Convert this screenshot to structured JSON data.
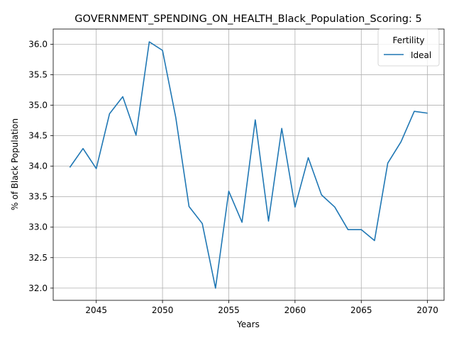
{
  "chart_data": {
    "type": "line",
    "title": "GOVERNMENT_SPENDING_ON_HEALTH_Black_Population_Scoring: 5",
    "xlabel": "Years",
    "ylabel": "% of Black Population",
    "xlim": [
      2041.75,
      2071.25
    ],
    "ylim": [
      31.8,
      36.25
    ],
    "xticks": [
      2045,
      2050,
      2055,
      2060,
      2065,
      2070
    ],
    "yticks": [
      32.0,
      32.5,
      33.0,
      33.5,
      34.0,
      34.5,
      35.0,
      35.5,
      36.0
    ],
    "xtick_labels": [
      "2045",
      "2050",
      "2055",
      "2060",
      "2065",
      "2070"
    ],
    "ytick_labels": [
      "32.0",
      "32.5",
      "33.0",
      "33.5",
      "34.0",
      "34.5",
      "35.0",
      "35.5",
      "36.0"
    ],
    "grid": true,
    "legend": {
      "title": "Fertility",
      "placement": "upper right"
    },
    "series": [
      {
        "name": "Ideal",
        "color": "#1f77b4",
        "x": [
          2043,
          2044,
          2045,
          2046,
          2047,
          2048,
          2049,
          2050,
          2051,
          2052,
          2053,
          2054,
          2055,
          2056,
          2057,
          2058,
          2059,
          2060,
          2061,
          2062,
          2063,
          2064,
          2065,
          2066,
          2067,
          2068,
          2069,
          2070
        ],
        "values": [
          33.98,
          34.29,
          33.96,
          34.86,
          35.14,
          34.51,
          36.04,
          35.9,
          34.8,
          33.34,
          33.06,
          32.0,
          33.59,
          33.08,
          34.76,
          33.1,
          34.62,
          33.33,
          34.14,
          33.53,
          33.33,
          32.96,
          32.96,
          32.78,
          34.05,
          34.4,
          34.9,
          34.87
        ]
      }
    ]
  }
}
